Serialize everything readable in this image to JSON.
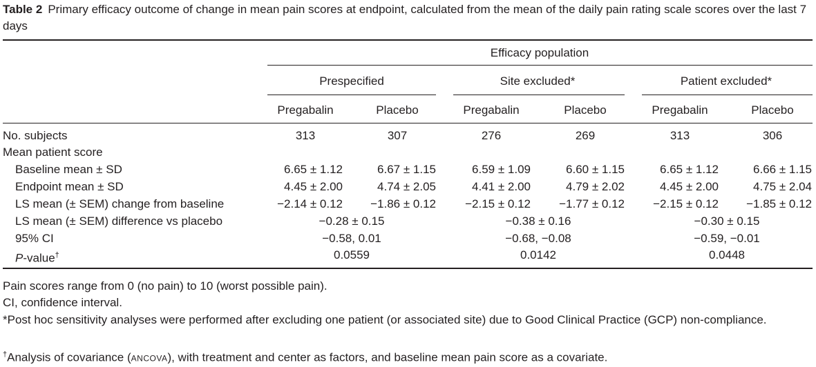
{
  "table": {
    "label": "Table 2",
    "caption": "Primary efficacy outcome of change in mean pain scores at endpoint, calculated from the mean of the daily pain rating scale scores over the last 7 days",
    "header": {
      "population": "Efficacy population",
      "groups": [
        "Prespecified",
        "Site excluded*",
        "Patient excluded*"
      ],
      "arms": [
        "Pregabalin",
        "Placebo",
        "Pregabalin",
        "Placebo",
        "Pregabalin",
        "Placebo"
      ]
    },
    "rows": {
      "subjects": {
        "label": "No. subjects",
        "values": [
          "313",
          "307",
          "276",
          "269",
          "313",
          "306"
        ]
      },
      "mean_patient_score": {
        "label": "Mean patient score"
      },
      "baseline": {
        "label": "Baseline mean ± SD",
        "values": [
          "6.65 ± 1.12",
          "6.67 ± 1.15",
          "6.59 ± 1.09",
          "6.60 ± 1.15",
          "6.65 ± 1.12",
          "6.66 ± 1.15"
        ]
      },
      "endpoint": {
        "label": "Endpoint mean ± SD",
        "values": [
          "4.45 ± 2.00",
          "4.74 ± 2.05",
          "4.41 ± 2.00",
          "4.79 ± 2.02",
          "4.45 ± 2.00",
          "4.75 ± 2.04"
        ]
      },
      "ls_change": {
        "label": "LS mean (± SEM) change from baseline",
        "values": [
          "−2.14 ± 0.12",
          "−1.86 ± 0.12",
          "−2.15 ± 0.12",
          "−1.77 ± 0.12",
          "−2.15 ± 0.12",
          "−1.85 ± 0.12"
        ]
      },
      "ls_diff": {
        "label": "LS mean (± SEM) difference vs placebo",
        "values": [
          "−0.28 ± 0.15",
          "−0.38 ± 0.16",
          "−0.30 ± 0.15"
        ]
      },
      "ci": {
        "label": "95% CI",
        "values": [
          "−0.58, 0.01",
          "−0.68, −0.08",
          "−0.59, −0.01"
        ]
      },
      "pvalue": {
        "label_italic": "P",
        "label_rest": "-value",
        "label_mark": "†",
        "values": [
          "0.0559",
          "0.0142",
          "0.0448"
        ]
      }
    },
    "footnotes": {
      "range": "Pain scores range from 0 (no pain) to 10 (worst possible pain).",
      "ci_abbrev": "CI, confidence interval.",
      "posthoc": "*Post hoc sensitivity analyses were performed after excluding one patient (or associated site) due to Good Clinical Practice (GCP) non-compliance.",
      "ancova_mark": "†",
      "ancova_pre": "Analysis of covariance (",
      "ancova_abbrev": "ANCOVA",
      "ancova_post": "), with treatment and center as factors, and baseline mean pain score as a covariate."
    }
  }
}
